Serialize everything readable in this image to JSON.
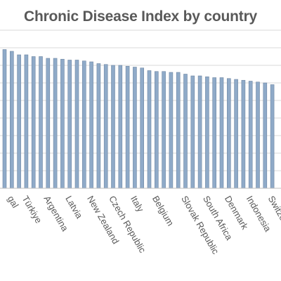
{
  "chart_data": {
    "type": "bar",
    "title": "Chronic Disease Index by country",
    "xlabel": "",
    "ylabel": "",
    "grid": true,
    "bar_color": "#8faac8",
    "bar_edge_color": "#6f87a3",
    "gridline_color": "#d9d9d9",
    "ylim": [
      0,
      9
    ],
    "categories": [
      "gal",
      "",
      "Türkiye",
      "",
      "",
      "Argentina",
      "",
      "",
      "Latvia",
      "",
      "",
      "New Zealand",
      "",
      "",
      "Czech Republic",
      "",
      "",
      "Italy",
      "",
      "",
      "Belgium",
      "",
      "",
      "",
      "Slovak Republic",
      "",
      "",
      "South Africa",
      "",
      "",
      "Denmark",
      "",
      "",
      "Indonesia",
      "",
      "",
      "Switzerla",
      ""
    ],
    "values": [
      7.9,
      7.8,
      7.6,
      7.6,
      7.5,
      7.5,
      7.4,
      7.4,
      7.35,
      7.3,
      7.3,
      7.25,
      7.2,
      7.1,
      7.05,
      7.0,
      7.0,
      6.95,
      6.9,
      6.85,
      6.7,
      6.65,
      6.65,
      6.6,
      6.6,
      6.5,
      6.4,
      6.4,
      6.35,
      6.3,
      6.3,
      6.25,
      6.2,
      6.15,
      6.1,
      6.05,
      6.0,
      5.9
    ]
  }
}
